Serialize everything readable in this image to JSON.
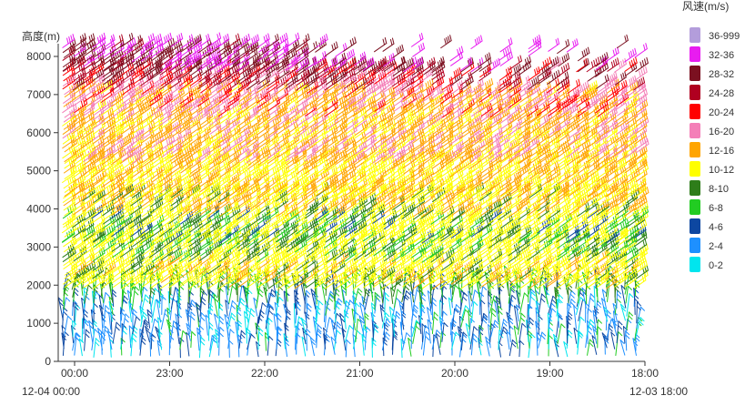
{
  "chart_data": {
    "type": "wind-barb",
    "ylabel": "高度(m)",
    "y_ticks": [
      0,
      1000,
      2000,
      3000,
      4000,
      5000,
      6000,
      7000,
      8000
    ],
    "ylim": [
      0,
      8300
    ],
    "x_ticks": [
      "00:00",
      "23:00",
      "22:00",
      "21:00",
      "20:00",
      "19:00",
      "18:00"
    ],
    "x_start_label": "12-04 00:00",
    "x_end_label": "12-03 18:00",
    "legend": {
      "title": "风速(m/s)",
      "placement": "right",
      "items": [
        {
          "label": "36-999",
          "color": "#b39ddb"
        },
        {
          "label": "32-36",
          "color": "#e81cf0"
        },
        {
          "label": "28-32",
          "color": "#7b1020"
        },
        {
          "label": "24-28",
          "color": "#b00020"
        },
        {
          "label": "20-24",
          "color": "#ff0000"
        },
        {
          "label": "16-20",
          "color": "#f47fb8"
        },
        {
          "label": "12-16",
          "color": "#ffa500"
        },
        {
          "label": "10-12",
          "color": "#ffff00"
        },
        {
          "label": "8-10",
          "color": "#2e7d1a"
        },
        {
          "label": "6-8",
          "color": "#22cc22"
        },
        {
          "label": "4-6",
          "color": "#0d47a1"
        },
        {
          "label": "2-4",
          "color": "#1e90ff"
        },
        {
          "label": "0-2",
          "color": "#00e5ee"
        }
      ]
    },
    "bands": [
      {
        "bottom": 100,
        "top": 1500,
        "mix": [
          {
            "c": 11,
            "w": 5
          },
          {
            "c": 10,
            "w": 3
          },
          {
            "c": 12,
            "w": 2
          },
          {
            "c": 9,
            "w": 1
          }
        ]
      },
      {
        "bottom": 1500,
        "top": 1900,
        "mix": [
          {
            "c": 9,
            "w": 4
          },
          {
            "c": 8,
            "w": 3
          },
          {
            "c": 10,
            "w": 1
          }
        ]
      },
      {
        "bottom": 1900,
        "top": 2600,
        "mix": [
          {
            "c": 7,
            "w": 8
          },
          {
            "c": 6,
            "w": 2
          },
          {
            "c": 8,
            "w": 1
          }
        ]
      },
      {
        "bottom": 2600,
        "top": 3100,
        "mix": [
          {
            "c": 7,
            "w": 5
          },
          {
            "c": 9,
            "w": 3
          },
          {
            "c": 8,
            "w": 3
          }
        ]
      },
      {
        "bottom": 3100,
        "top": 3800,
        "mix": [
          {
            "c": 7,
            "w": 6
          },
          {
            "c": 9,
            "w": 2
          },
          {
            "c": 8,
            "w": 3
          },
          {
            "c": 10,
            "w": 1
          }
        ]
      },
      {
        "bottom": 3800,
        "top": 4300,
        "mix": [
          {
            "c": 7,
            "w": 5
          },
          {
            "c": 6,
            "w": 4
          },
          {
            "c": 8,
            "w": 2
          }
        ]
      },
      {
        "bottom": 4300,
        "top": 5200,
        "mix": [
          {
            "c": 7,
            "w": 6
          },
          {
            "c": 6,
            "w": 5
          }
        ]
      },
      {
        "bottom": 5200,
        "top": 6400,
        "mix": [
          {
            "c": 6,
            "w": 6
          },
          {
            "c": 7,
            "w": 3
          },
          {
            "c": 5,
            "w": 3
          }
        ]
      },
      {
        "bottom": 6400,
        "top": 7100,
        "mix": [
          {
            "c": 6,
            "w": 4
          },
          {
            "c": 5,
            "w": 4
          },
          {
            "c": 4,
            "w": 2
          },
          {
            "c": 7,
            "w": 1
          }
        ]
      },
      {
        "bottom": 7100,
        "top": 7600,
        "mix": [
          {
            "c": 2,
            "w": 3
          },
          {
            "c": 3,
            "w": 3
          },
          {
            "c": 5,
            "w": 2
          },
          {
            "c": 4,
            "w": 2
          }
        ]
      },
      {
        "bottom": 7600,
        "top": 8250,
        "mix": [
          {
            "c": 2,
            "w": 4
          },
          {
            "c": 1,
            "w": 4
          },
          {
            "c": 3,
            "w": 1
          }
        ]
      }
    ]
  }
}
